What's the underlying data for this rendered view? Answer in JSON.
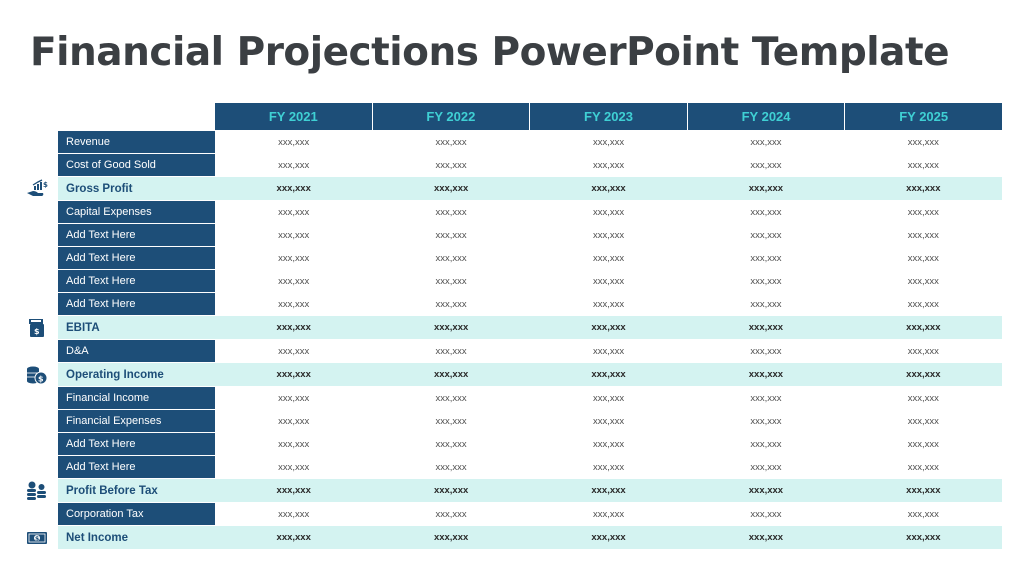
{
  "title": "Financial Projections PowerPoint Template",
  "years": [
    "FY 2021",
    "FY 2022",
    "FY 2023",
    "FY 2024",
    "FY 2025"
  ],
  "placeholder_value": "xxx,xxx",
  "colors": {
    "header_bg": "#1d4e78",
    "header_text": "#3fd0d4",
    "highlight_bg": "#d4f3f1",
    "title_text": "#3b3f43"
  },
  "rows": [
    {
      "label": "Revenue",
      "bold": false,
      "values": [
        "xxx,xxx",
        "xxx,xxx",
        "xxx,xxx",
        "xxx,xxx",
        "xxx,xxx"
      ]
    },
    {
      "label": "Cost of Good Sold",
      "bold": false,
      "values": [
        "xxx,xxx",
        "xxx,xxx",
        "xxx,xxx",
        "xxx,xxx",
        "xxx,xxx"
      ]
    },
    {
      "label": "Gross Profit",
      "bold": true,
      "icon": "hand-growth-chart-icon",
      "values": [
        "xxx,xxx",
        "xxx,xxx",
        "xxx,xxx",
        "xxx,xxx",
        "xxx,xxx"
      ]
    },
    {
      "label": "Capital Expenses",
      "bold": false,
      "values": [
        "xxx,xxx",
        "xxx,xxx",
        "xxx,xxx",
        "xxx,xxx",
        "xxx,xxx"
      ]
    },
    {
      "label": "Add Text Here",
      "bold": false,
      "values": [
        "xxx,xxx",
        "xxx,xxx",
        "xxx,xxx",
        "xxx,xxx",
        "xxx,xxx"
      ]
    },
    {
      "label": "Add Text Here",
      "bold": false,
      "values": [
        "xxx,xxx",
        "xxx,xxx",
        "xxx,xxx",
        "xxx,xxx",
        "xxx,xxx"
      ]
    },
    {
      "label": "Add Text Here",
      "bold": false,
      "values": [
        "xxx,xxx",
        "xxx,xxx",
        "xxx,xxx",
        "xxx,xxx",
        "xxx,xxx"
      ]
    },
    {
      "label": "Add Text Here",
      "bold": false,
      "values": [
        "xxx,xxx",
        "xxx,xxx",
        "xxx,xxx",
        "xxx,xxx",
        "xxx,xxx"
      ]
    },
    {
      "label": "EBITA",
      "bold": true,
      "icon": "cash-register-icon",
      "values": [
        "xxx,xxx",
        "xxx,xxx",
        "xxx,xxx",
        "xxx,xxx",
        "xxx,xxx"
      ]
    },
    {
      "label": "D&A",
      "bold": false,
      "values": [
        "xxx,xxx",
        "xxx,xxx",
        "xxx,xxx",
        "xxx,xxx",
        "xxx,xxx"
      ]
    },
    {
      "label": "Operating Income",
      "bold": true,
      "icon": "coins-dollar-icon",
      "values": [
        "xxx,xxx",
        "xxx,xxx",
        "xxx,xxx",
        "xxx,xxx",
        "xxx,xxx"
      ]
    },
    {
      "label": "Financial Income",
      "bold": false,
      "values": [
        "xxx,xxx",
        "xxx,xxx",
        "xxx,xxx",
        "xxx,xxx",
        "xxx,xxx"
      ]
    },
    {
      "label": "Financial Expenses",
      "bold": false,
      "values": [
        "xxx,xxx",
        "xxx,xxx",
        "xxx,xxx",
        "xxx,xxx",
        "xxx,xxx"
      ]
    },
    {
      "label": "Add Text Here",
      "bold": false,
      "values": [
        "xxx,xxx",
        "xxx,xxx",
        "xxx,xxx",
        "xxx,xxx",
        "xxx,xxx"
      ]
    },
    {
      "label": "Add Text Here",
      "bold": false,
      "values": [
        "xxx,xxx",
        "xxx,xxx",
        "xxx,xxx",
        "xxx,xxx",
        "xxx,xxx"
      ]
    },
    {
      "label": "Profit Before Tax",
      "bold": true,
      "icon": "coin-stacks-icon",
      "values": [
        "xxx,xxx",
        "xxx,xxx",
        "xxx,xxx",
        "xxx,xxx",
        "xxx,xxx"
      ]
    },
    {
      "label": "Corporation Tax",
      "bold": false,
      "values": [
        "xxx,xxx",
        "xxx,xxx",
        "xxx,xxx",
        "xxx,xxx",
        "xxx,xxx"
      ]
    },
    {
      "label": "Net Income",
      "bold": true,
      "icon": "cash-bill-icon",
      "values": [
        "xxx,xxx",
        "xxx,xxx",
        "xxx,xxx",
        "xxx,xxx",
        "xxx,xxx"
      ]
    }
  ]
}
